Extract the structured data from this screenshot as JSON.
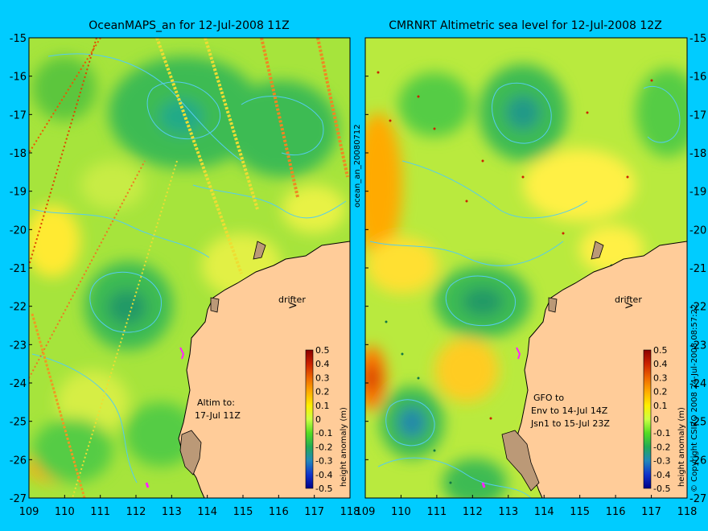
{
  "left_panel": {
    "title": "OceanMAPS_an for 12-Jul-2008 11Z",
    "annotation": [
      "Altim to:",
      "17-Jul 11Z"
    ],
    "drifter_label": "drifter"
  },
  "right_panel": {
    "title": "CMRNRT Altimetric sea level  for 12-Jul-2008 12Z",
    "annotation": [
      "GFO to",
      "Env to 14-Jul 14Z",
      "Jsn1 to 15-Jul 23Z"
    ],
    "drifter_label": "drifter"
  },
  "vertical_label": "ocean_an_20080712",
  "copyright": "© Copyright CSIRO 2008   24-Jul-2008 08:57:22",
  "x_ticks": [
    "109",
    "110",
    "111",
    "112",
    "113",
    "114",
    "115",
    "116",
    "117",
    "118"
  ],
  "y_ticks": [
    "-15",
    "-16",
    "-17",
    "-18",
    "-19",
    "-20",
    "-21",
    "-22",
    "-23",
    "-24",
    "-25",
    "-26",
    "-27"
  ],
  "colorbar": {
    "label": "height anomaly (m)",
    "ticks": [
      "0.5",
      "0.4",
      "0.3",
      "0.2",
      "0.1",
      "0",
      "-0.1",
      "-0.2",
      "-0.3",
      "-0.4",
      "-0.5"
    ],
    "colors": [
      "#8b0000",
      "#cc2200",
      "#ee6600",
      "#ffaa00",
      "#ffee00",
      "#ccff44",
      "#55dd22",
      "#22aa55",
      "#2288bb",
      "#1133cc",
      "#000088"
    ]
  },
  "colors": {
    "background": "#00ccff",
    "land": "#ffcc99",
    "coast": "#bb9977",
    "ocean_base": "#a6e43c",
    "low": "#33bb55",
    "high": "#ffe23a",
    "contour": "#55ccee",
    "drifter": "#ff22ff"
  }
}
